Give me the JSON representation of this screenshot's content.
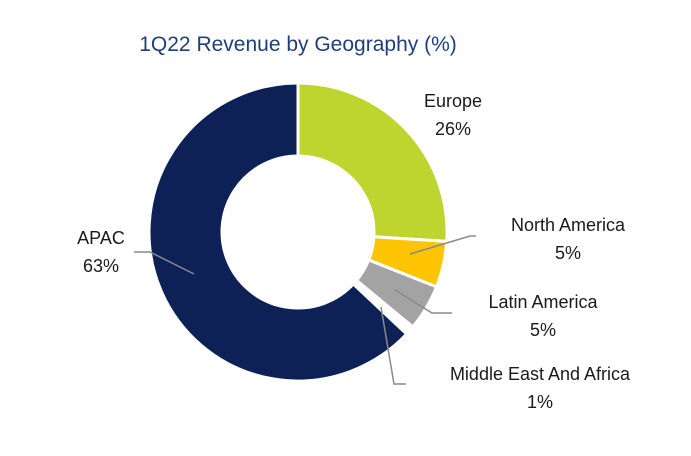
{
  "chart_data": {
    "type": "pie",
    "title": "1Q22 Revenue by Geography (%)",
    "slices": [
      {
        "label": "Europe",
        "value": 26,
        "value_label": "26%",
        "color": "#bed52f"
      },
      {
        "label": "North America",
        "value": 5,
        "value_label": "5%",
        "color": "#ffc505"
      },
      {
        "label": "Latin America",
        "value": 5,
        "value_label": "5%",
        "color": "#a3a3a3"
      },
      {
        "label": "Middle East And Africa",
        "value": 1,
        "value_label": "1%",
        "color": "#ffffff"
      },
      {
        "label": "APAC",
        "value": 63,
        "value_label": "63%",
        "color": "#0d2157"
      }
    ]
  }
}
